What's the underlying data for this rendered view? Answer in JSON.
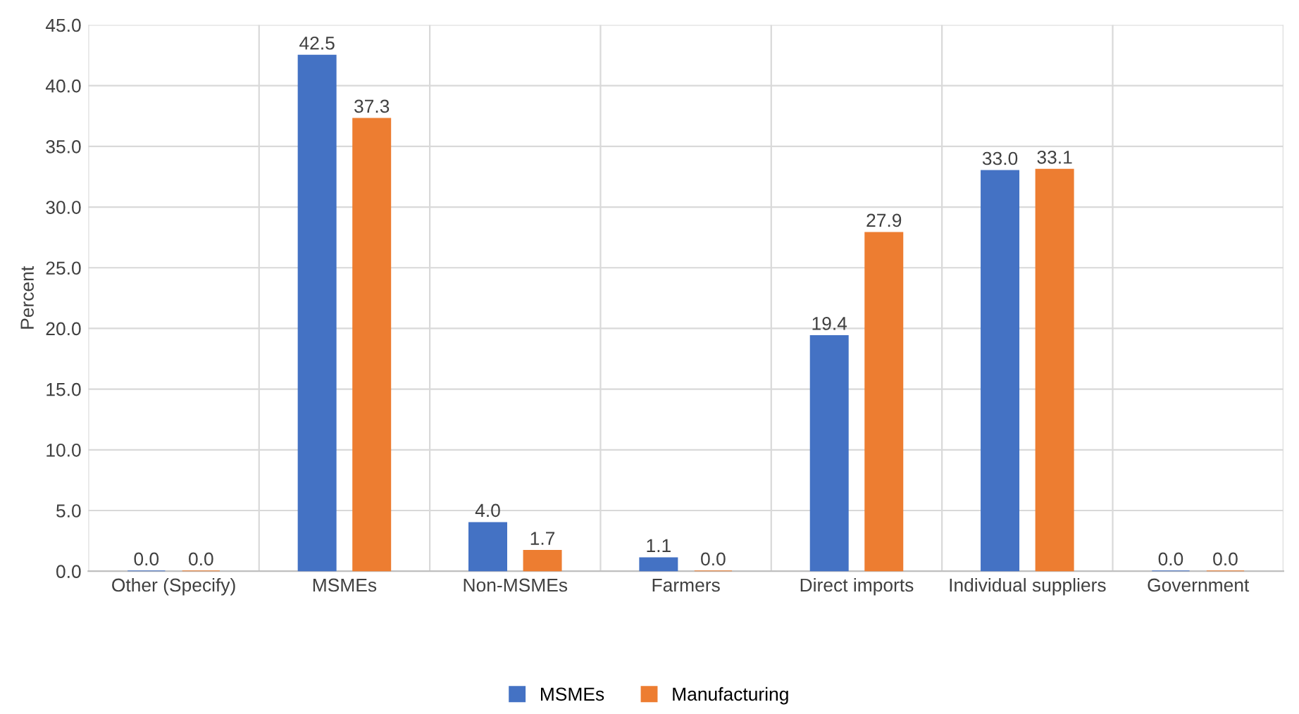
{
  "chart_data": {
    "type": "bar",
    "ylabel": "Percent",
    "categories": [
      "Other (Specify)",
      "MSMEs",
      "Non-MSMEs",
      "Farmers",
      "Direct imports",
      "Individual suppliers",
      "Government"
    ],
    "series": [
      {
        "name": "MSMEs",
        "color": "#4472c4",
        "values": [
          0.0,
          42.5,
          4.0,
          1.1,
          19.4,
          33.0,
          0.0
        ],
        "value_labels": [
          "0.0",
          "42.5",
          "4.0",
          "1.1",
          "19.4",
          "33.0",
          "0.0"
        ]
      },
      {
        "name": "Manufacturing",
        "color": "#ed7d31",
        "values": [
          0.0,
          37.3,
          1.7,
          0.0,
          27.9,
          33.1,
          0.0
        ],
        "value_labels": [
          "0.0",
          "37.3",
          "1.7",
          "0.0",
          "27.9",
          "33.1",
          "0.0"
        ]
      }
    ],
    "ylim": [
      0,
      45
    ],
    "yticks": [
      "0.0",
      "5.0",
      "10.0",
      "15.0",
      "20.0",
      "25.0",
      "30.0",
      "35.0",
      "40.0",
      "45.0"
    ],
    "grid": true,
    "legend": "bottom"
  }
}
